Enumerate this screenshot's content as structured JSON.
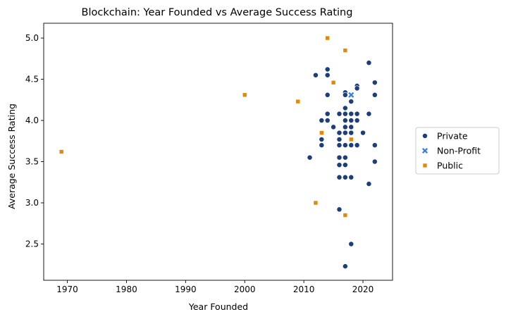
{
  "chart_data": {
    "type": "scatter",
    "title": "Blockchain: Year Founded vs Average Success Rating",
    "xlabel": "Year Founded",
    "ylabel": "Average Success Rating",
    "xlim": [
      1966,
      2025
    ],
    "ylim": [
      2.06,
      5.18
    ],
    "xticks": [
      1970,
      1980,
      1990,
      2000,
      2010,
      2020
    ],
    "yticks": [
      2.5,
      3.0,
      3.5,
      4.0,
      4.5,
      5.0
    ],
    "grid": false,
    "legend": "center-right",
    "series": [
      {
        "name": "Private",
        "marker": "circle",
        "color": "#1c3f7c",
        "points": [
          [
            2011,
            3.55
          ],
          [
            2012,
            4.55
          ],
          [
            2013,
            3.7
          ],
          [
            2013,
            3.77
          ],
          [
            2013,
            4.0
          ],
          [
            2014,
            4.62
          ],
          [
            2014,
            4.55
          ],
          [
            2014,
            4.31
          ],
          [
            2014,
            4.08
          ],
          [
            2014,
            4.0
          ],
          [
            2015,
            3.92
          ],
          [
            2016,
            4.08
          ],
          [
            2016,
            3.85
          ],
          [
            2016,
            3.77
          ],
          [
            2016,
            3.7
          ],
          [
            2016,
            3.55
          ],
          [
            2016,
            3.46
          ],
          [
            2016,
            3.31
          ],
          [
            2016,
            2.92
          ],
          [
            2017,
            4.34
          ],
          [
            2017,
            4.31
          ],
          [
            2017,
            4.15
          ],
          [
            2017,
            4.08
          ],
          [
            2017,
            4.0
          ],
          [
            2017,
            3.92
          ],
          [
            2017,
            3.85
          ],
          [
            2017,
            3.7
          ],
          [
            2017,
            3.55
          ],
          [
            2017,
            3.46
          ],
          [
            2017,
            3.31
          ],
          [
            2017,
            2.23
          ],
          [
            2018,
            4.23
          ],
          [
            2018,
            4.08
          ],
          [
            2018,
            4.0
          ],
          [
            2018,
            3.92
          ],
          [
            2018,
            3.85
          ],
          [
            2018,
            3.7
          ],
          [
            2018,
            3.31
          ],
          [
            2018,
            2.5
          ],
          [
            2019,
            4.42
          ],
          [
            2019,
            4.39
          ],
          [
            2019,
            4.08
          ],
          [
            2019,
            4.0
          ],
          [
            2019,
            3.7
          ],
          [
            2020,
            3.85
          ],
          [
            2021,
            4.7
          ],
          [
            2021,
            4.08
          ],
          [
            2021,
            3.23
          ],
          [
            2022,
            4.46
          ],
          [
            2022,
            4.31
          ],
          [
            2022,
            3.7
          ],
          [
            2022,
            3.5
          ]
        ]
      },
      {
        "name": "Non-Profit",
        "marker": "x",
        "color": "#3f7fdc",
        "points": [
          [
            2018,
            4.31
          ]
        ]
      },
      {
        "name": "Public",
        "marker": "square",
        "color": "#e08a0b",
        "points": [
          [
            1969,
            3.62
          ],
          [
            2000,
            4.31
          ],
          [
            2009,
            4.23
          ],
          [
            2012,
            3.0
          ],
          [
            2013,
            3.85
          ],
          [
            2014,
            5.0
          ],
          [
            2015,
            4.46
          ],
          [
            2017,
            4.85
          ],
          [
            2017,
            2.85
          ],
          [
            2018,
            3.77
          ]
        ]
      }
    ]
  }
}
